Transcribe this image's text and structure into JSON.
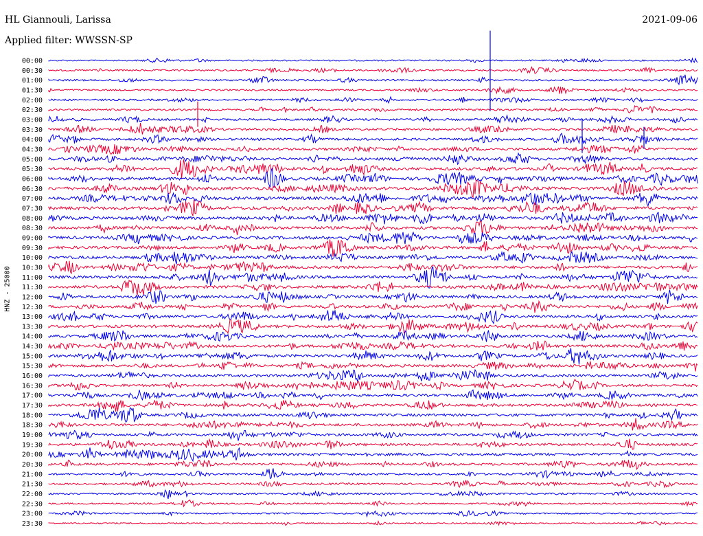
{
  "header": {
    "station": "HL Giannouli, Larissa",
    "date": "2021-09-06",
    "filter": "Applied filter: WWSSN-SP"
  },
  "channel_label": "HNZ - 25000",
  "colors": {
    "blue": "#0000ee",
    "red": "#ee0033"
  },
  "time_labels": [
    "00:00",
    "00:30",
    "01:00",
    "01:30",
    "02:00",
    "02:30",
    "03:00",
    "03:30",
    "04:00",
    "04:30",
    "05:00",
    "05:30",
    "06:00",
    "06:30",
    "07:00",
    "07:30",
    "08:00",
    "08:30",
    "09:00",
    "09:30",
    "10:00",
    "10:30",
    "11:00",
    "11:30",
    "12:00",
    "12:30",
    "13:00",
    "13:30",
    "14:00",
    "14:30",
    "15:00",
    "15:30",
    "16:00",
    "16:30",
    "17:00",
    "17:30",
    "18:00",
    "18:30",
    "19:00",
    "19:30",
    "20:00",
    "20:30",
    "21:00",
    "21:30",
    "22:00",
    "22:30",
    "23:00",
    "23:30"
  ],
  "trace_activity": [
    0.15,
    0.25,
    0.3,
    0.2,
    0.3,
    0.35,
    0.45,
    0.5,
    0.55,
    0.6,
    0.7,
    0.8,
    0.85,
    0.9,
    0.9,
    0.9,
    0.85,
    0.8,
    0.8,
    0.75,
    0.75,
    0.75,
    0.75,
    0.75,
    0.7,
    0.7,
    0.7,
    0.7,
    0.7,
    0.7,
    0.75,
    0.7,
    0.65,
    0.65,
    0.65,
    0.65,
    0.65,
    0.6,
    0.6,
    0.6,
    0.65,
    0.55,
    0.45,
    0.35,
    0.3,
    0.2,
    0.2,
    0.1
  ]
}
